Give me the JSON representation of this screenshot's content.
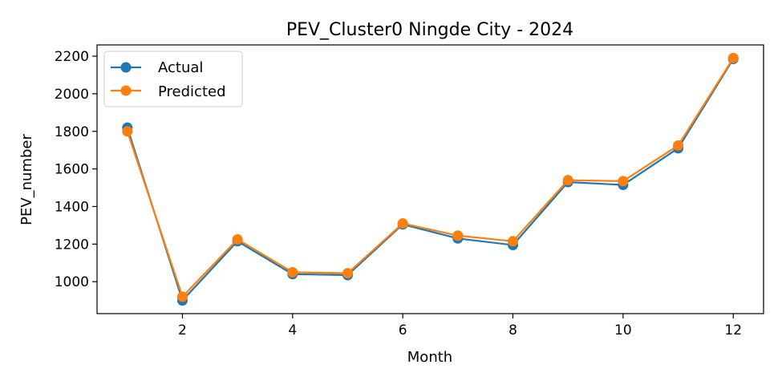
{
  "chart_data": {
    "type": "line",
    "title": "PEV_Cluster0 Ningde City - 2024",
    "xlabel": "Month",
    "ylabel": "PEV_number",
    "x": [
      1,
      2,
      3,
      4,
      5,
      6,
      7,
      8,
      9,
      10,
      11,
      12
    ],
    "xlim": [
      0.45,
      12.55
    ],
    "ylim": [
      830,
      2260
    ],
    "xticks": [
      2,
      4,
      6,
      8,
      10,
      12
    ],
    "yticks": [
      1000,
      1200,
      1400,
      1600,
      1800,
      2000,
      2200
    ],
    "grid": false,
    "legend_position": "top-left",
    "series": [
      {
        "name": "Actual",
        "color": "#1f77b4",
        "values": [
          1820,
          900,
          1215,
          1040,
          1035,
          1305,
          1230,
          1195,
          1530,
          1515,
          1710,
          2185
        ]
      },
      {
        "name": "Predicted",
        "color": "#ff7f0e",
        "values": [
          1800,
          920,
          1225,
          1050,
          1045,
          1310,
          1245,
          1215,
          1540,
          1535,
          1725,
          2190
        ]
      }
    ]
  }
}
